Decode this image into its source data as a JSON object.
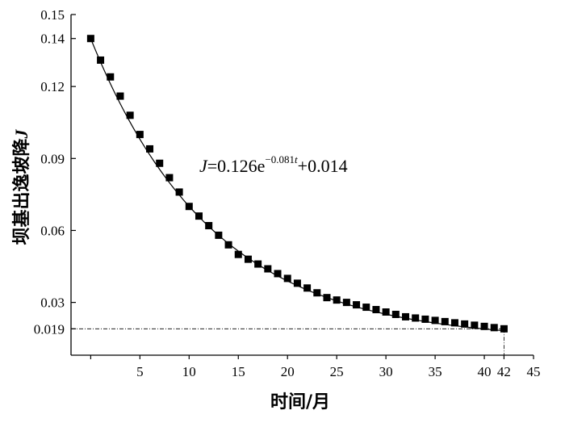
{
  "chart_data": {
    "type": "scatter",
    "title": "",
    "xlabel": "时间/月",
    "ylabel_text": "坝基出逸坡降",
    "ylabel_symbol": "J",
    "xlim": [
      -2,
      45
    ],
    "ylim": [
      0.008,
      0.15
    ],
    "x_ticks": [
      5,
      10,
      15,
      20,
      25,
      30,
      35,
      40,
      42,
      45
    ],
    "y_ticks": [
      "0.019",
      "0.03",
      "0.06",
      "0.09",
      "0.12",
      "0.14",
      "0.15"
    ],
    "equation": {
      "symbol": "J",
      "eq_part": "=0.126e",
      "exponent_main": "−0.081",
      "exponent_var": "t",
      "tail": "+0.014"
    },
    "fit": {
      "a": 0.126,
      "b": 0.081,
      "c": 0.014
    },
    "reference_line": {
      "y": 0.019,
      "x_end": 42
    },
    "series": [
      {
        "x": [
          0,
          1,
          2,
          3,
          4,
          5,
          6,
          7,
          8,
          9,
          10,
          11,
          12,
          13,
          14,
          15,
          16,
          17,
          18,
          19,
          20,
          21,
          22,
          23,
          24,
          25,
          26,
          27,
          28,
          29,
          30,
          31,
          32,
          33,
          34,
          35,
          36,
          37,
          38,
          39,
          40,
          41,
          42
        ],
        "values": [
          0.14,
          0.131,
          0.124,
          0.116,
          0.108,
          0.1,
          0.094,
          0.088,
          0.082,
          0.076,
          0.07,
          0.066,
          0.062,
          0.058,
          0.054,
          0.05,
          0.048,
          0.046,
          0.044,
          0.042,
          0.04,
          0.038,
          0.036,
          0.034,
          0.032,
          0.031,
          0.03,
          0.029,
          0.028,
          0.027,
          0.026,
          0.025,
          0.024,
          0.0235,
          0.023,
          0.0225,
          0.022,
          0.0215,
          0.021,
          0.0205,
          0.02,
          0.0195,
          0.019
        ]
      }
    ]
  }
}
